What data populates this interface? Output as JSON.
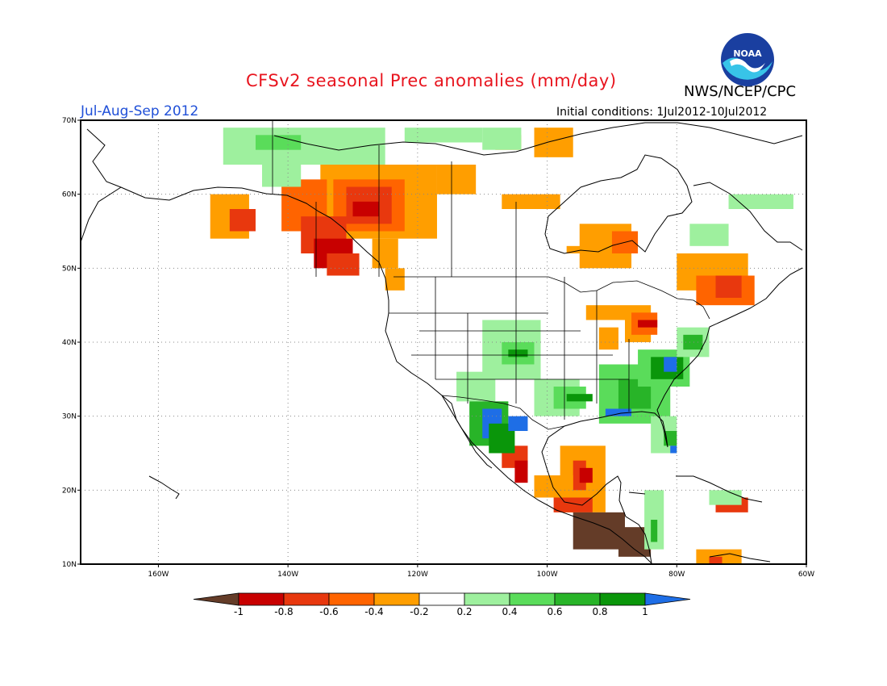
{
  "header": {
    "title": "CFSv2 seasonal Prec anomalies (mm/day)",
    "period": "Jul-Aug-Sep 2012",
    "agency": "NWS/NCEP/CPC",
    "initial_conditions": "Initial conditions: 1Jul2012-10Jul2012",
    "logo_text": "NOAA"
  },
  "map": {
    "lon_range": [
      -172,
      -60
    ],
    "lat_range": [
      10,
      70
    ],
    "lon_labels": [
      "160W",
      "140W",
      "120W",
      "100W",
      "80W",
      "60W"
    ],
    "lat_labels": [
      "10N",
      "20N",
      "30N",
      "40N",
      "50N",
      "60N",
      "70N"
    ],
    "grid": "dotted"
  },
  "colorbar": {
    "labels": [
      "-1",
      "-0.8",
      "-0.6",
      "-0.4",
      "-0.2",
      "0.2",
      "0.4",
      "0.6",
      "0.8",
      "1"
    ],
    "colors": [
      "#643c28",
      "#c80000",
      "#e8380e",
      "#ff6400",
      "#ff9e00",
      "#ffffff",
      "#9ef09e",
      "#5adc5a",
      "#28b428",
      "#0a960a",
      "#1e6ee6"
    ]
  }
}
